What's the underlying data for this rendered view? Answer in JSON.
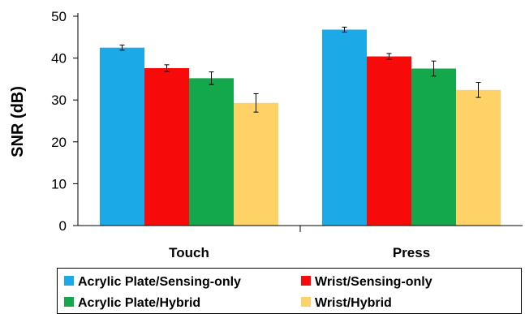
{
  "chart_data": {
    "type": "bar",
    "categories": [
      "Touch",
      "Press"
    ],
    "ylabel": "SNR (dB)",
    "xlabel": "",
    "ylim": [
      0,
      50
    ],
    "yticks": [
      0,
      10,
      20,
      30,
      40,
      50
    ],
    "grid": false,
    "legend_position": "bottom",
    "series": [
      {
        "name": "Acrylic Plate/Sensing-only",
        "color": "#1BA9E8",
        "values": [
          42.5,
          46.8
        ],
        "errors": [
          0.6,
          0.6
        ]
      },
      {
        "name": "Wrist/Sensing-only",
        "color": "#F70A0A",
        "values": [
          37.6,
          40.4
        ],
        "errors": [
          0.8,
          0.7
        ]
      },
      {
        "name": "Acrylic Plate/Hybrid",
        "color": "#13A84B",
        "values": [
          35.2,
          37.5
        ],
        "errors": [
          1.5,
          1.8
        ]
      },
      {
        "name": "Wrist/Hybrid",
        "color": "#FED266",
        "values": [
          29.3,
          32.4
        ],
        "errors": [
          2.2,
          1.8
        ]
      }
    ]
  }
}
